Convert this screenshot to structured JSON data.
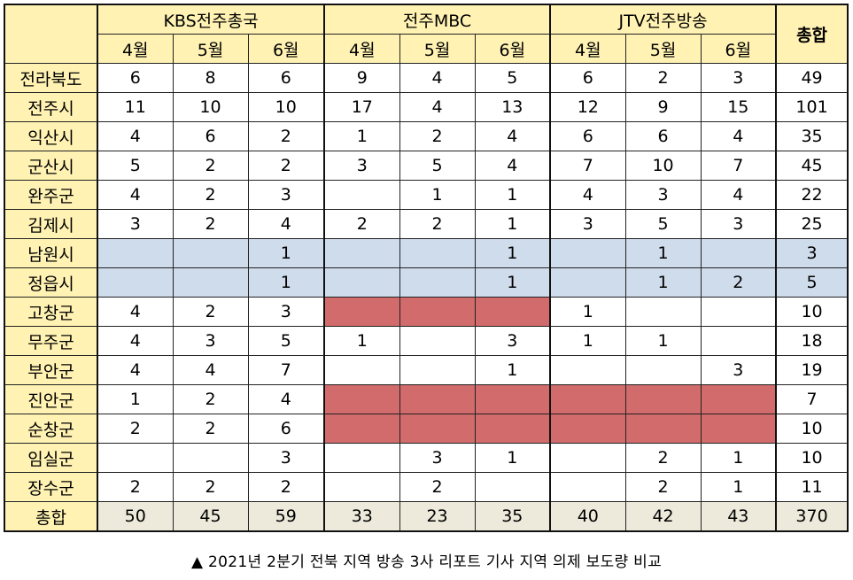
{
  "table": {
    "groups": [
      "KBS전주총국",
      "전주MBC",
      "JTV전주방송"
    ],
    "total_label": "총합",
    "months": [
      "4월",
      "5월",
      "6월",
      "4월",
      "5월",
      "6월",
      "4월",
      "5월",
      "6월"
    ],
    "rows": [
      {
        "region": "전라북도",
        "values": [
          "6",
          "8",
          "6",
          "9",
          "4",
          "5",
          "6",
          "2",
          "3"
        ],
        "total": "49"
      },
      {
        "region": "전주시",
        "values": [
          "11",
          "10",
          "10",
          "17",
          "4",
          "13",
          "12",
          "9",
          "15"
        ],
        "total": "101"
      },
      {
        "region": "익산시",
        "values": [
          "4",
          "6",
          "2",
          "1",
          "2",
          "4",
          "6",
          "6",
          "4"
        ],
        "total": "35"
      },
      {
        "region": "군산시",
        "values": [
          "5",
          "2",
          "2",
          "3",
          "5",
          "4",
          "7",
          "10",
          "7"
        ],
        "total": "45"
      },
      {
        "region": "완주군",
        "values": [
          "4",
          "2",
          "3",
          "",
          "1",
          "1",
          "4",
          "3",
          "4"
        ],
        "total": "22"
      },
      {
        "region": "김제시",
        "values": [
          "3",
          "2",
          "4",
          "2",
          "2",
          "1",
          "3",
          "5",
          "3"
        ],
        "total": "25"
      },
      {
        "region": "남원시",
        "values": [
          "",
          "",
          "1",
          "",
          "",
          "1",
          "",
          "1",
          ""
        ],
        "total": "3"
      },
      {
        "region": "정읍시",
        "values": [
          "",
          "",
          "1",
          "",
          "",
          "1",
          "",
          "1",
          "2"
        ],
        "total": "5"
      },
      {
        "region": "고창군",
        "values": [
          "4",
          "2",
          "3",
          "",
          "",
          "",
          "1",
          "",
          ""
        ],
        "total": "10"
      },
      {
        "region": "무주군",
        "values": [
          "4",
          "3",
          "5",
          "1",
          "",
          "3",
          "1",
          "1",
          ""
        ],
        "total": "18"
      },
      {
        "region": "부안군",
        "values": [
          "4",
          "4",
          "7",
          "",
          "",
          "1",
          "",
          "",
          "3"
        ],
        "total": "19"
      },
      {
        "region": "진안군",
        "values": [
          "1",
          "2",
          "4",
          "",
          "",
          "",
          "",
          "",
          ""
        ],
        "total": "7"
      },
      {
        "region": "순창군",
        "values": [
          "2",
          "2",
          "6",
          "",
          "",
          "",
          "",
          "",
          ""
        ],
        "total": "10"
      },
      {
        "region": "임실군",
        "values": [
          "",
          "",
          "3",
          "",
          "3",
          "1",
          "",
          "2",
          "1"
        ],
        "total": "10"
      },
      {
        "region": "장수군",
        "values": [
          "2",
          "2",
          "2",
          "",
          "2",
          "",
          "",
          "2",
          "1"
        ],
        "total": "11"
      }
    ],
    "footer": {
      "label": "총합",
      "values": [
        "50",
        "45",
        "59",
        "33",
        "23",
        "35",
        "40",
        "42",
        "43"
      ],
      "total": "370"
    }
  },
  "caption": "▲ 2021년 2분기 전북 지역 방송 3사 리포트 기사 지역 의제 보도량 비교",
  "colors": {
    "header": "#fff2b3",
    "footer": "#eeeadb",
    "highlight_blue": "#cfdcec",
    "highlight_red": "#d26b6b"
  }
}
